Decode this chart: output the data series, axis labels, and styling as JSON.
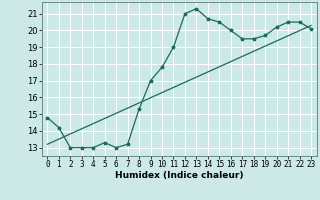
{
  "xlabel": "Humidex (Indice chaleur)",
  "background_color": "#cce8e8",
  "grid_color": "#ffffff",
  "line_color": "#1a6b5a",
  "xlim": [
    -0.5,
    23.5
  ],
  "ylim": [
    12.5,
    21.7
  ],
  "xticks": [
    0,
    1,
    2,
    3,
    4,
    5,
    6,
    7,
    8,
    9,
    10,
    11,
    12,
    13,
    14,
    15,
    16,
    17,
    18,
    19,
    20,
    21,
    22,
    23
  ],
  "yticks": [
    13,
    14,
    15,
    16,
    17,
    18,
    19,
    20,
    21
  ],
  "line1_x": [
    0,
    1,
    2,
    3,
    4,
    5,
    6,
    7,
    8,
    9,
    10,
    11,
    12,
    13,
    14,
    15,
    16,
    17,
    18,
    19,
    20,
    21,
    22,
    23
  ],
  "line1_y": [
    14.8,
    14.2,
    13.0,
    13.0,
    13.0,
    13.3,
    13.0,
    13.2,
    15.3,
    17.0,
    17.8,
    19.0,
    21.0,
    21.3,
    20.7,
    20.5,
    20.0,
    19.5,
    19.5,
    19.7,
    20.2,
    20.5,
    20.5,
    20.1
  ],
  "line2_x": [
    0,
    23
  ],
  "line2_y": [
    13.2,
    20.3
  ],
  "tick_fontsize": 5.5,
  "label_fontsize": 6.5
}
